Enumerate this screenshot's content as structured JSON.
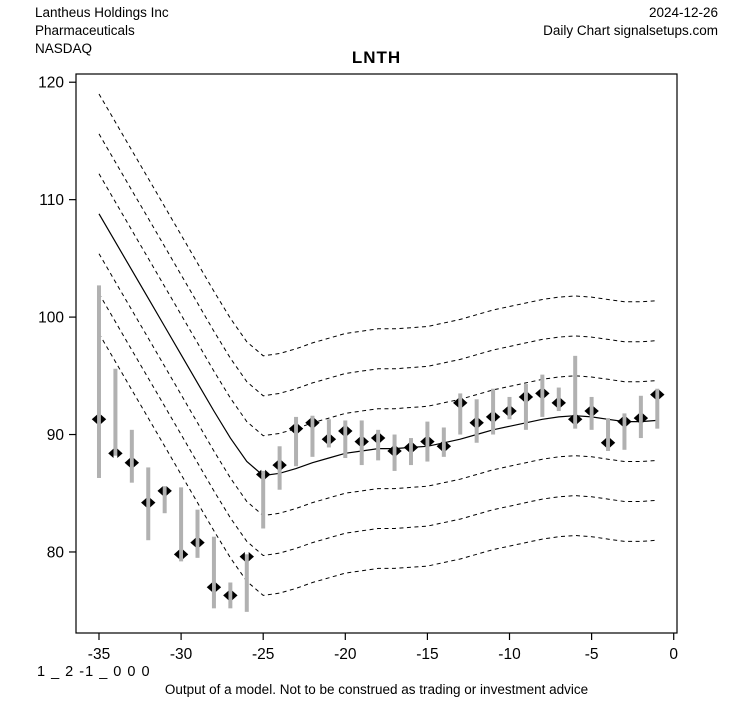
{
  "header": {
    "company": "Lantheus Holdings Inc",
    "sector": "Pharmaceuticals",
    "exchange": "NASDAQ",
    "date": "2024-12-26",
    "source": "Daily Chart signalsetups.com"
  },
  "footer": {
    "code_line": "1 _ 2 -1 _ 0 0 0",
    "disclaimer": "Output of a model. Not to be construed as trading or investment advice"
  },
  "chart_data": {
    "type": "line",
    "title": "LNTH",
    "xlabel": "",
    "ylabel": "",
    "xlim": [
      -36.4,
      0.2
    ],
    "ylim": [
      73.1,
      120.7
    ],
    "x_ticks": [
      -35,
      -30,
      -25,
      -20,
      -15,
      -10,
      -5,
      0
    ],
    "y_ticks": [
      80,
      90,
      100,
      110,
      120
    ],
    "grid": false,
    "legend": "none",
    "colors": {
      "line": "#000000",
      "band": "#000000",
      "bar": "#b1b1b1",
      "marker": "#000000"
    },
    "band_offsets": [
      10.2,
      6.8,
      3.4,
      -3.4,
      -6.8,
      -10.2
    ],
    "center_line": {
      "x": [
        -35,
        -34,
        -33,
        -32,
        -31,
        -30,
        -29,
        -28,
        -27,
        -26,
        -25,
        -24,
        -23,
        -22,
        -21,
        -20,
        -19,
        -18,
        -17,
        -16,
        -15,
        -14,
        -13,
        -12,
        -11,
        -10,
        -9,
        -8,
        -7,
        -6,
        -5,
        -4,
        -3,
        -2,
        -1
      ],
      "y": [
        108.8,
        106.4,
        104.0,
        101.6,
        99.2,
        96.8,
        94.4,
        92.0,
        89.7,
        87.7,
        86.5,
        86.7,
        87.1,
        87.6,
        88.0,
        88.4,
        88.6,
        88.8,
        88.8,
        88.9,
        89.0,
        89.3,
        89.6,
        90.0,
        90.4,
        90.7,
        91.0,
        91.3,
        91.5,
        91.6,
        91.5,
        91.3,
        91.1,
        91.1,
        91.2
      ]
    },
    "observations": [
      {
        "x": -35,
        "close": 91.3,
        "low": 86.3,
        "high": 102.7
      },
      {
        "x": -34,
        "close": 88.4,
        "low": 88.2,
        "high": 95.6
      },
      {
        "x": -33,
        "close": 87.6,
        "low": 85.9,
        "high": 90.4
      },
      {
        "x": -32,
        "close": 84.2,
        "low": 81.0,
        "high": 87.2
      },
      {
        "x": -31,
        "close": 85.2,
        "low": 83.3,
        "high": 85.6
      },
      {
        "x": -30,
        "close": 79.8,
        "low": 79.2,
        "high": 85.5
      },
      {
        "x": -29,
        "close": 80.8,
        "low": 79.5,
        "high": 83.6
      },
      {
        "x": -28,
        "close": 77.0,
        "low": 75.2,
        "high": 81.3
      },
      {
        "x": -27,
        "close": 76.3,
        "low": 75.2,
        "high": 77.4
      },
      {
        "x": -26,
        "close": 79.6,
        "low": 74.9,
        "high": 79.8
      },
      {
        "x": -25,
        "close": 86.6,
        "low": 82.0,
        "high": 86.9
      },
      {
        "x": -24,
        "close": 87.4,
        "low": 85.3,
        "high": 89.0
      },
      {
        "x": -23,
        "close": 90.5,
        "low": 87.3,
        "high": 91.5
      },
      {
        "x": -22,
        "close": 91.0,
        "low": 88.1,
        "high": 91.6
      },
      {
        "x": -21,
        "close": 89.6,
        "low": 88.9,
        "high": 91.3
      },
      {
        "x": -20,
        "close": 90.3,
        "low": 88.0,
        "high": 91.2
      },
      {
        "x": -19,
        "close": 89.4,
        "low": 87.4,
        "high": 91.2
      },
      {
        "x": -18,
        "close": 89.7,
        "low": 87.8,
        "high": 90.4
      },
      {
        "x": -17,
        "close": 88.6,
        "low": 86.9,
        "high": 90.0
      },
      {
        "x": -16,
        "close": 88.9,
        "low": 87.4,
        "high": 89.7
      },
      {
        "x": -15,
        "close": 89.4,
        "low": 87.7,
        "high": 91.1
      },
      {
        "x": -14,
        "close": 89.0,
        "low": 88.1,
        "high": 90.6
      },
      {
        "x": -13,
        "close": 92.7,
        "low": 90.0,
        "high": 93.5
      },
      {
        "x": -12,
        "close": 91.0,
        "low": 89.3,
        "high": 93.0
      },
      {
        "x": -11,
        "close": 91.5,
        "low": 90.0,
        "high": 93.9
      },
      {
        "x": -10,
        "close": 92.0,
        "low": 91.3,
        "high": 93.2
      },
      {
        "x": -9,
        "close": 93.2,
        "low": 90.4,
        "high": 94.3
      },
      {
        "x": -8,
        "close": 93.5,
        "low": 91.5,
        "high": 95.1
      },
      {
        "x": -7,
        "close": 92.7,
        "low": 92.0,
        "high": 94.0
      },
      {
        "x": -6,
        "close": 91.3,
        "low": 90.5,
        "high": 96.7
      },
      {
        "x": -5,
        "close": 92.0,
        "low": 90.4,
        "high": 93.2
      },
      {
        "x": -4,
        "close": 89.3,
        "low": 88.6,
        "high": 91.4
      },
      {
        "x": -3,
        "close": 91.1,
        "low": 88.7,
        "high": 91.8
      },
      {
        "x": -2,
        "close": 91.4,
        "low": 89.7,
        "high": 93.3
      },
      {
        "x": -1,
        "close": 93.4,
        "low": 90.5,
        "high": 93.9
      }
    ]
  }
}
